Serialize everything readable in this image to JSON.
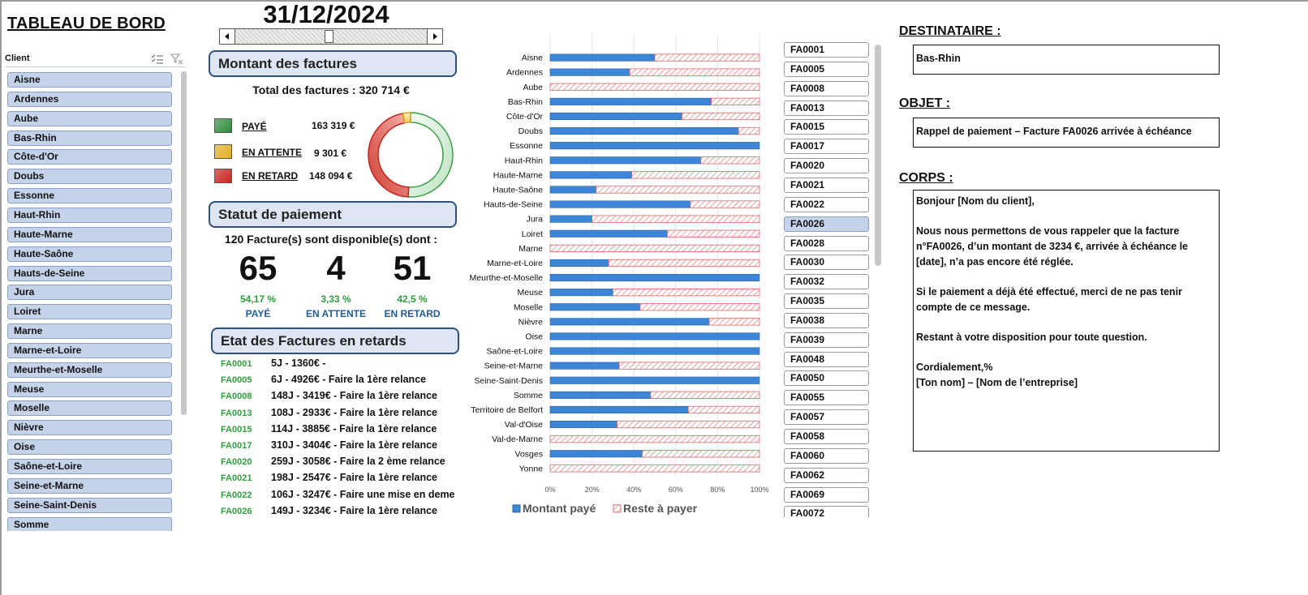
{
  "title": "TABLEAU DE BORD",
  "date": "31/12/2024",
  "slicer": {
    "title": "Client",
    "items": [
      "Aisne",
      "Ardennes",
      "Aube",
      "Bas-Rhin",
      "Côte-d'Or",
      "Doubs",
      "Essonne",
      "Haut-Rhin",
      "Haute-Marne",
      "Haute-Saône",
      "Hauts-de-Seine",
      "Jura",
      "Loiret",
      "Marne",
      "Marne-et-Loire",
      "Meurthe-et-Moselle",
      "Meuse",
      "Moselle",
      "Nièvre",
      "Oise",
      "Saône-et-Loire",
      "Seine-et-Marne",
      "Seine-Saint-Denis",
      "Somme"
    ]
  },
  "montant": {
    "header": "Montant des factures",
    "total": "Total des factures : 320 714  €",
    "legend": [
      {
        "label": "PAYÉ",
        "value": "163 319  €",
        "color": "#2e8b3d"
      },
      {
        "label": "EN ATTENTE",
        "value": "9 301  €",
        "color": "#e0b020"
      },
      {
        "label": "EN RETARD",
        "value": "148 094  €",
        "color": "#c8231e"
      }
    ],
    "donut": {
      "paid": 163319,
      "pending": 9301,
      "late": 148094
    }
  },
  "statut": {
    "header": "Statut de paiement",
    "summary": "120 Facture(s) sont disponible(s) dont :",
    "stats": [
      {
        "count": "65",
        "pct": "54,17 %",
        "label": "PAYÉ"
      },
      {
        "count": "4",
        "pct": "3,33 %",
        "label": "EN ATTENTE"
      },
      {
        "count": "51",
        "pct": "42,5 %",
        "label": "EN RETARD"
      }
    ]
  },
  "retards": {
    "header": "Etat des Factures en retards",
    "rows": [
      {
        "code": "FA0001",
        "text": "5J  -  1360€ -"
      },
      {
        "code": "FA0005",
        "text": "6J  -  4926€ -  Faire la 1ère relance"
      },
      {
        "code": "FA0008",
        "text": "148J  -  3419€ -  Faire la 1ère relance"
      },
      {
        "code": "FA0013",
        "text": "108J  -  2933€ -  Faire la 1ère relance"
      },
      {
        "code": "FA0015",
        "text": "114J  -  3885€ -  Faire la 1ère relance"
      },
      {
        "code": "FA0017",
        "text": "310J  -  3404€ -  Faire la 1ère relance"
      },
      {
        "code": "FA0020",
        "text": "259J  -  3058€ -  Faire la 2 ème relance"
      },
      {
        "code": "FA0021",
        "text": "198J  -  2547€ -  Faire la 1ère relance"
      },
      {
        "code": "FA0022",
        "text": "106J  -  3247€ -  Faire une mise en deme"
      },
      {
        "code": "FA0026",
        "text": "149J  -  3234€ -  Faire la 1ère relance"
      }
    ]
  },
  "chart_data": {
    "type": "bar",
    "orientation": "horizontal",
    "stacked": "100%",
    "categories": [
      "Aisne",
      "Ardennes",
      "Aube",
      "Bas-Rhin",
      "Côte-d'Or",
      "Doubs",
      "Essonne",
      "Haut-Rhin",
      "Haute-Marne",
      "Haute-Saône",
      "Hauts-de-Seine",
      "Jura",
      "Loiret",
      "Marne",
      "Marne-et-Loire",
      "Meurthe-et-Moselle",
      "Meuse",
      "Moselle",
      "Nièvre",
      "Oise",
      "Saône-et-Loire",
      "Seine-et-Marne",
      "Seine-Saint-Denis",
      "Somme",
      "Territoire de Belfort",
      "Val-d'Oise",
      "Val-de-Marne",
      "Vosges",
      "Yonne"
    ],
    "series": [
      {
        "name": "Montant payé",
        "color": "#3d85d6",
        "values": [
          50,
          38,
          0,
          77,
          63,
          90,
          100,
          72,
          39,
          22,
          67,
          20,
          56,
          0,
          28,
          100,
          30,
          43,
          76,
          100,
          100,
          33,
          100,
          48,
          66,
          32,
          0,
          44,
          0
        ]
      },
      {
        "name": "Reste à payer",
        "color": "#e06666",
        "values": [
          50,
          62,
          100,
          23,
          37,
          10,
          0,
          28,
          61,
          78,
          33,
          80,
          44,
          100,
          72,
          0,
          70,
          57,
          24,
          0,
          0,
          67,
          0,
          52,
          34,
          68,
          100,
          56,
          100
        ]
      }
    ],
    "xticks": [
      "0%",
      "20%",
      "40%",
      "60%",
      "80%",
      "100%"
    ],
    "xlim": [
      0,
      100
    ],
    "grid": true,
    "legend": "bottom"
  },
  "invoices": {
    "items": [
      "FA0001",
      "FA0005",
      "FA0008",
      "FA0013",
      "FA0015",
      "FA0017",
      "FA0020",
      "FA0021",
      "FA0022",
      "FA0026",
      "FA0028",
      "FA0030",
      "FA0032",
      "FA0035",
      "FA0038",
      "FA0039",
      "FA0048",
      "FA0050",
      "FA0055",
      "FA0057",
      "FA0058",
      "FA0060",
      "FA0062",
      "FA0069",
      "FA0072"
    ],
    "selected": "FA0026"
  },
  "email": {
    "dest_label": "DESTINATAIRE :",
    "dest_value": "Bas-Rhin",
    "obj_label": "OBJET :",
    "obj_value": "Rappel de paiement – Facture FA0026 arrivée à échéance",
    "body_label": "CORPS :",
    "body": {
      "greeting": "Bonjour [Nom du client],",
      "p1": "Nous nous permettons de vous rappeler que la facture n°FA0026, d’un montant de 3234 €, arrivée à échéance le [date], n’a pas encore été réglée.",
      "p2": "Si le paiement a déjà été effectué, merci de ne pas tenir compte de ce message.",
      "p3": "Restant à votre disposition pour toute question.",
      "sign1": "Cordialement,%",
      "sign2": "[Ton nom] – [Nom de l’entreprise]"
    }
  }
}
